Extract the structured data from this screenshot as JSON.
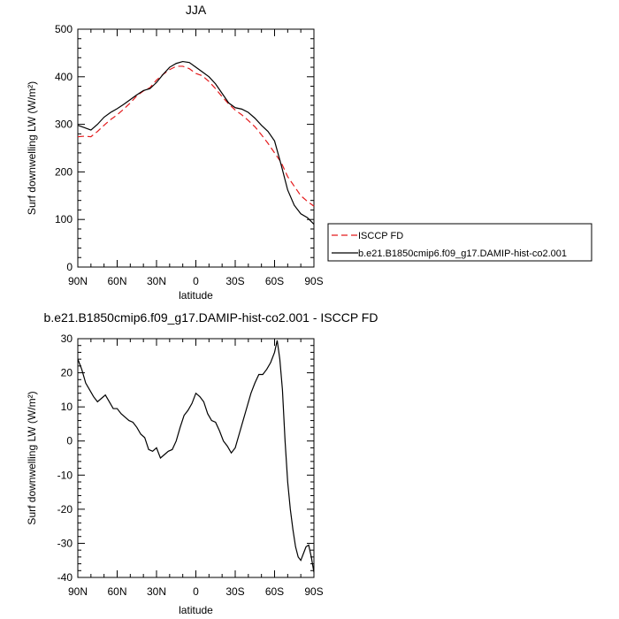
{
  "chart_data": [
    {
      "type": "line",
      "title": "JJA",
      "xlabel": "latitude",
      "ylabel": "Surf downwelling LW (W/m²)",
      "xlim": [
        90,
        -90
      ],
      "ylim": [
        0,
        500
      ],
      "xticks": [
        {
          "value": 90,
          "label": "90N"
        },
        {
          "value": 60,
          "label": "60N"
        },
        {
          "value": 30,
          "label": "30N"
        },
        {
          "value": 0,
          "label": "0"
        },
        {
          "value": -30,
          "label": "30S"
        },
        {
          "value": -60,
          "label": "60S"
        },
        {
          "value": -90,
          "label": "90S"
        }
      ],
      "yticks": [
        0,
        100,
        200,
        300,
        400,
        500
      ],
      "legend": {
        "placement": "bottom-right-outside"
      },
      "series": [
        {
          "name": "ISCCP FD",
          "color": "#e41a1c",
          "dash": true,
          "x": [
            90,
            85,
            80,
            75,
            70,
            65,
            60,
            55,
            50,
            45,
            40,
            35,
            30,
            25,
            20,
            15,
            10,
            5,
            0,
            -5,
            -10,
            -15,
            -20,
            -25,
            -30,
            -35,
            -40,
            -45,
            -50,
            -55,
            -60,
            -65,
            -70,
            -75,
            -80,
            -85,
            -90
          ],
          "y": [
            274,
            275,
            274,
            285,
            298,
            310,
            320,
            332,
            345,
            360,
            370,
            377,
            393,
            405,
            415,
            422,
            422,
            417,
            407,
            402,
            390,
            375,
            358,
            343,
            330,
            320,
            308,
            295,
            278,
            260,
            240,
            220,
            190,
            170,
            150,
            138,
            128
          ]
        },
        {
          "name": "b.e21.B1850cmip6.f09_g17.DAMIP-hist-co2.001",
          "color": "#000000",
          "dash": false,
          "x": [
            90,
            85,
            80,
            75,
            70,
            65,
            60,
            55,
            50,
            45,
            40,
            35,
            30,
            25,
            20,
            15,
            10,
            5,
            0,
            -5,
            -10,
            -15,
            -20,
            -25,
            -30,
            -35,
            -40,
            -45,
            -50,
            -55,
            -60,
            -65,
            -70,
            -75,
            -80,
            -85,
            -90
          ],
          "y": [
            298,
            293,
            288,
            300,
            315,
            325,
            333,
            342,
            352,
            362,
            371,
            375,
            388,
            405,
            420,
            428,
            432,
            430,
            420,
            410,
            400,
            385,
            365,
            345,
            335,
            332,
            325,
            313,
            298,
            285,
            265,
            215,
            162,
            130,
            112,
            104,
            90
          ]
        }
      ]
    },
    {
      "type": "line",
      "title": "b.e21.B1850cmip6.f09_g17.DAMIP-hist-co2.001 - ISCCP FD",
      "xlabel": "latitude",
      "ylabel": "Surf downwelling LW (W/m²)",
      "xlim": [
        90,
        -90
      ],
      "ylim": [
        -40,
        30
      ],
      "xticks": [
        {
          "value": 90,
          "label": "90N"
        },
        {
          "value": 60,
          "label": "60N"
        },
        {
          "value": 30,
          "label": "30N"
        },
        {
          "value": 0,
          "label": "0"
        },
        {
          "value": -30,
          "label": "30S"
        },
        {
          "value": -60,
          "label": "60S"
        },
        {
          "value": -90,
          "label": "90S"
        }
      ],
      "yticks": [
        -40,
        -30,
        -20,
        -10,
        0,
        10,
        20,
        30
      ],
      "series": [
        {
          "color": "#000000",
          "dash": false,
          "x": [
            90,
            87,
            84,
            81,
            78,
            75,
            72,
            69,
            66,
            63,
            60,
            57,
            54,
            51,
            48,
            45,
            42,
            39,
            36,
            33,
            30,
            27,
            24,
            21,
            18,
            15,
            12,
            9,
            6,
            3,
            0,
            -3,
            -6,
            -9,
            -12,
            -15,
            -18,
            -21,
            -24,
            -27,
            -30,
            -33,
            -36,
            -39,
            -42,
            -45,
            -48,
            -51,
            -54,
            -57,
            -60,
            -62,
            -64,
            -66,
            -68,
            -70,
            -72,
            -74,
            -76,
            -78,
            -80,
            -82,
            -84,
            -86,
            -88,
            -90
          ],
          "y": [
            24,
            21,
            17,
            15,
            13,
            11.5,
            12.5,
            13.5,
            11.5,
            9.5,
            9.5,
            8,
            7,
            6,
            5.5,
            4,
            2,
            1,
            -2.5,
            -3,
            -2,
            -5,
            -4,
            -3,
            -2.5,
            0,
            4,
            7.5,
            9,
            11,
            14,
            13,
            11.5,
            8,
            6,
            5.5,
            3,
            0,
            -1.5,
            -3.5,
            -2,
            2,
            6,
            10,
            14,
            17,
            19.5,
            19.5,
            21,
            23,
            26,
            29.5,
            24,
            15,
            0,
            -12,
            -20,
            -26,
            -31,
            -34,
            -35,
            -33,
            -31,
            -30.5,
            -34,
            -38.5
          ]
        }
      ]
    }
  ]
}
